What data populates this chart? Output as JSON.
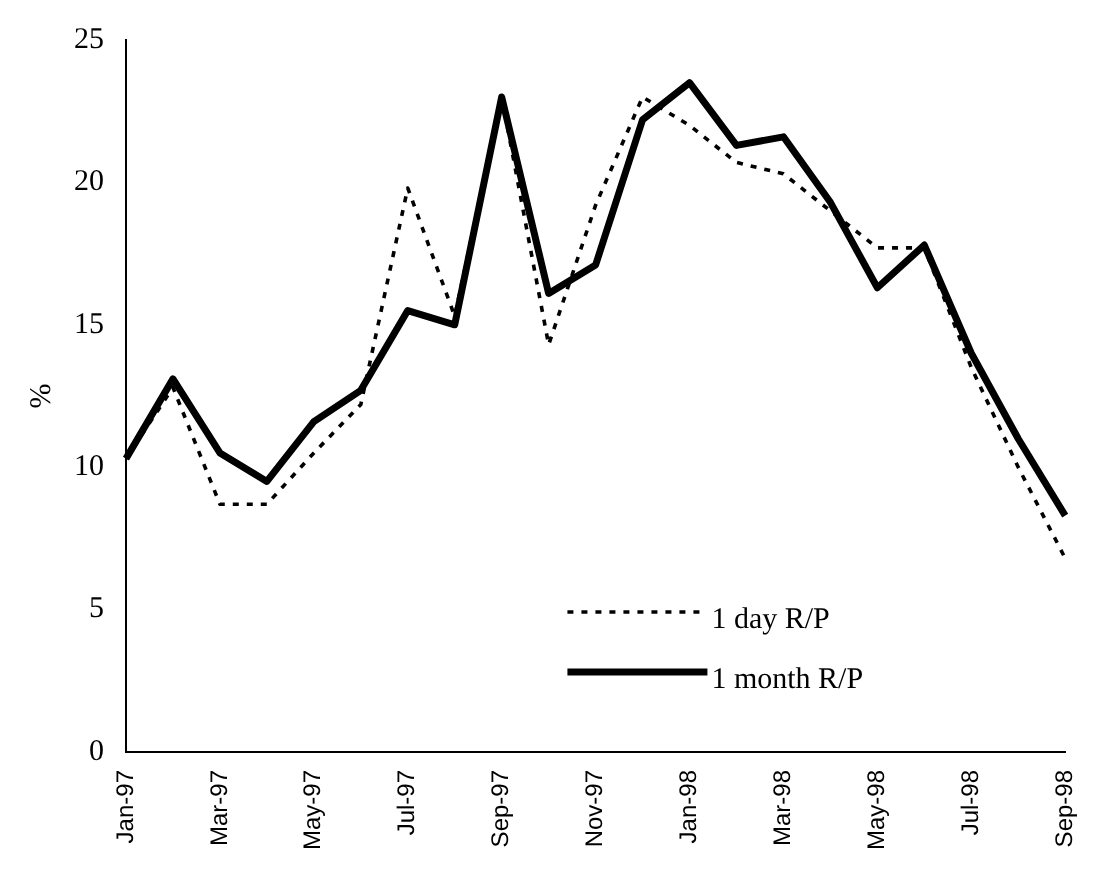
{
  "chart_data": {
    "type": "line",
    "ylabel": "%",
    "categories": [
      "Jan-97",
      null,
      "Mar-97",
      null,
      "May-97",
      null,
      "Jul-97",
      null,
      "Sep-97",
      null,
      "Nov-97",
      null,
      "Jan-98",
      null,
      "Mar-98",
      null,
      "May-98",
      null,
      "Jul-98",
      null,
      "Sep-98"
    ],
    "series": [
      {
        "name": "1 day R/P",
        "color": "#000000",
        "line_style": "dotted",
        "values": [
          10.3,
          12.8,
          8.7,
          8.7,
          10.5,
          12.2,
          19.8,
          15.3,
          23.0,
          14.3,
          19.2,
          23.0,
          22.0,
          20.7,
          20.3,
          19.0,
          17.7,
          17.7,
          13.5,
          10.0,
          6.8
        ]
      },
      {
        "name": "1 month R/P",
        "color": "#000000",
        "line_style": "solid",
        "values": [
          10.3,
          13.1,
          10.5,
          9.5,
          11.6,
          12.7,
          15.5,
          15.0,
          23.0,
          16.1,
          17.1,
          22.2,
          23.5,
          21.3,
          21.6,
          19.3,
          16.3,
          17.8,
          14.0,
          11.0,
          8.3
        ]
      }
    ],
    "ylim": [
      0,
      25
    ],
    "yticks": [
      0,
      5,
      10,
      15,
      20,
      25
    ],
    "grid": false,
    "legend": "bottom",
    "marker": "none"
  }
}
